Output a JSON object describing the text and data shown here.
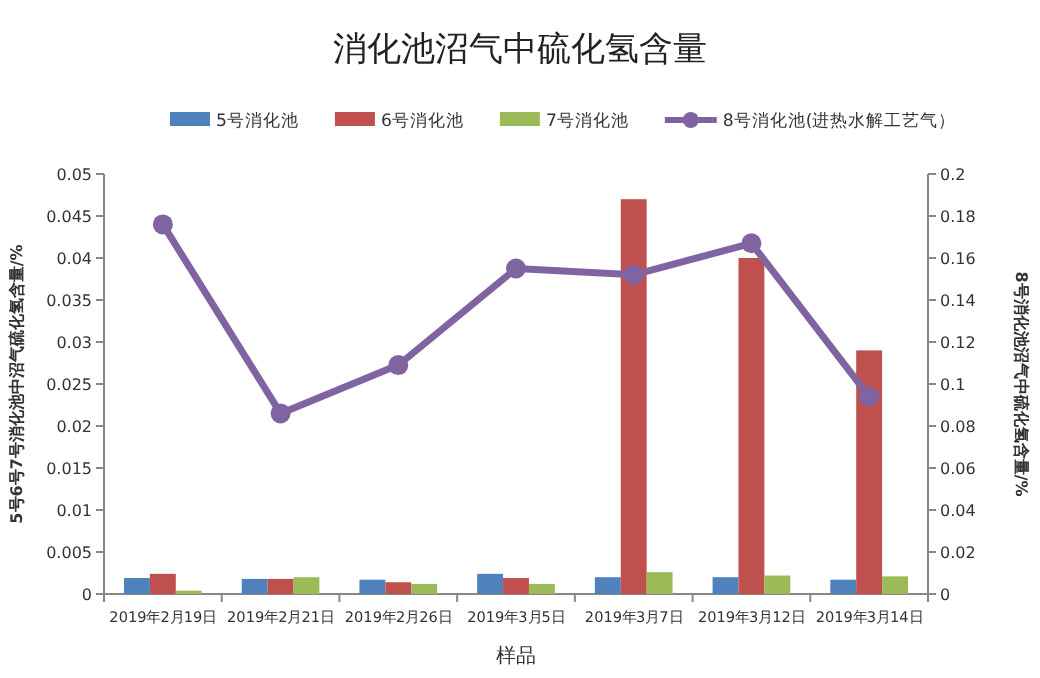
{
  "chart_data": {
    "type": "bar",
    "title": "消化池沼气中硫化氢含量",
    "xlabel": "样品",
    "ylabel": "5号6号7号消化池中沼气硫化氢含量/%",
    "y2label": "8号消化池沼气中硫化氢含量/%",
    "categories": [
      "2019年2月19日",
      "2019年2月21日",
      "2019年2月26日",
      "2019年3月5日",
      "2019年3月7日",
      "2019年3月12日",
      "2019年3月14日"
    ],
    "series": [
      {
        "name": "5号消化池",
        "color": "#4f81bd",
        "values": [
          0.0019,
          0.0018,
          0.0017,
          0.0024,
          0.002,
          0.002,
          0.0017
        ]
      },
      {
        "name": "6号消化池",
        "color": "#c0504d",
        "values": [
          0.0024,
          0.0018,
          0.0014,
          0.0019,
          0.047,
          0.04,
          0.029
        ]
      },
      {
        "name": "7号消化池",
        "color": "#9bbb59",
        "values": [
          0.0004,
          0.002,
          0.0012,
          0.0012,
          0.0026,
          0.0022,
          0.0021
        ]
      },
      {
        "name": "8号消化池(进热水解工艺气）",
        "color": "#8064a2",
        "type": "line",
        "axis": "y2",
        "marker": "circle",
        "values": [
          0.176,
          0.086,
          0.109,
          0.155,
          0.152,
          0.167,
          0.094
        ]
      }
    ],
    "ylim": [
      0,
      0.05
    ],
    "yticks": [
      0,
      0.005,
      0.01,
      0.015,
      0.02,
      0.025,
      0.03,
      0.035,
      0.04,
      0.045,
      0.05
    ],
    "y2lim": [
      0,
      0.2
    ],
    "y2ticks": [
      0,
      0.02,
      0.04,
      0.06,
      0.08,
      0.1,
      0.12,
      0.14,
      0.16,
      0.18,
      0.2
    ],
    "legend": "top",
    "grid": false
  }
}
